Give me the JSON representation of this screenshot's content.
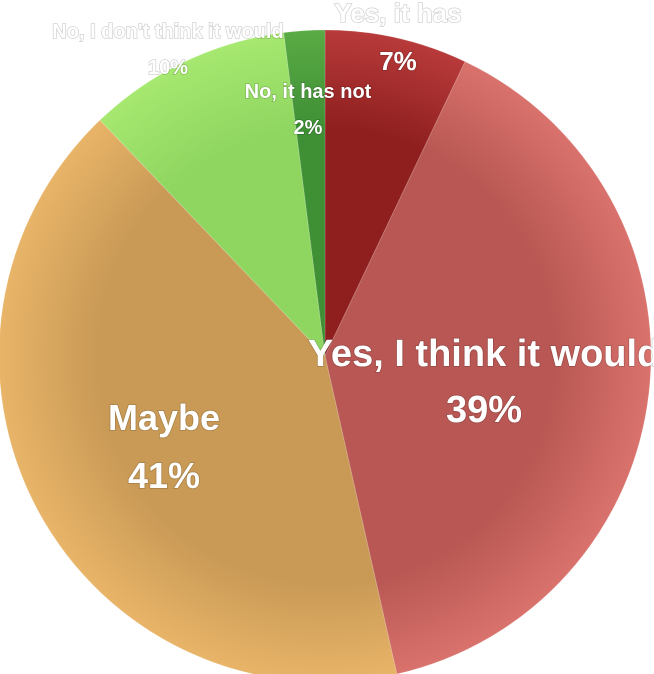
{
  "chart_data": {
    "type": "pie",
    "title": "",
    "slices": [
      {
        "label": "Yes, it has",
        "value": 7,
        "display": "7%",
        "color": "#8f1f1f",
        "highlight": "#b83a3a"
      },
      {
        "label": "Yes, I think it would",
        "value": 39,
        "display": "39%",
        "color": "#b85753",
        "highlight": "#d9726c"
      },
      {
        "label": "Maybe",
        "value": 41,
        "display": "41%",
        "color": "#c99a56",
        "highlight": "#e8b468"
      },
      {
        "label": "No, I don't think it would",
        "value": 10,
        "display": "10%",
        "color": "#8fd660",
        "highlight": "#a6e870"
      },
      {
        "label": "No, it has not",
        "value": 2,
        "display": "2%",
        "color": "#3f8f35",
        "highlight": "#5aab45"
      }
    ],
    "legend": "none",
    "start_angle_deg": 0,
    "direction": "clockwise"
  }
}
